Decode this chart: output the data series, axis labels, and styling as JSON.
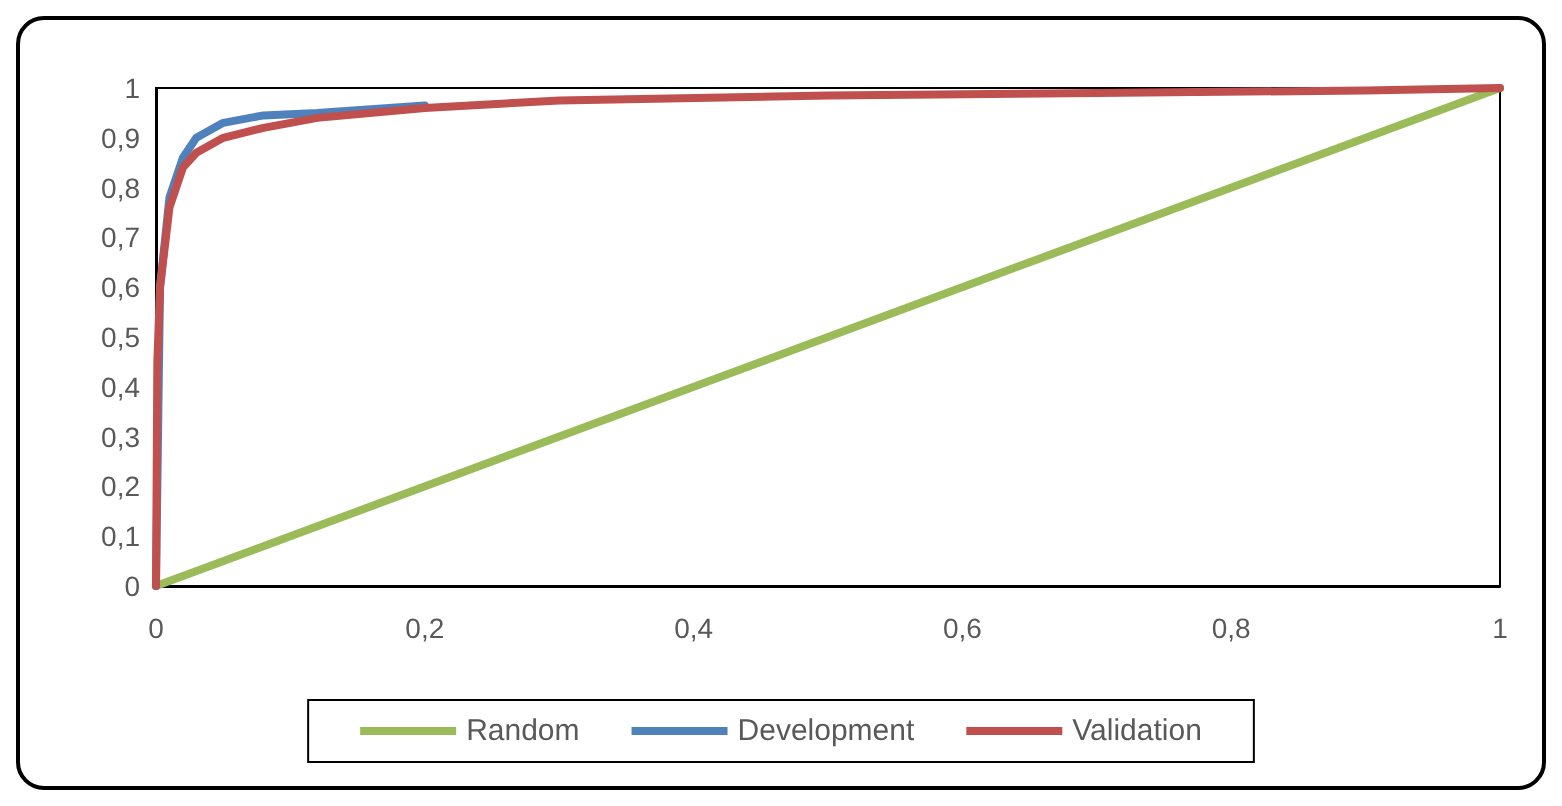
{
  "chart_data": {
    "type": "line",
    "xlim": [
      0,
      1
    ],
    "ylim": [
      0,
      1
    ],
    "xticks": [
      0,
      {
        "value": 0.2,
        "label": "0,2"
      },
      {
        "value": 0.4,
        "label": "0,4"
      },
      {
        "value": 0.6,
        "label": "0,6"
      },
      {
        "value": 0.8,
        "label": "0,8"
      },
      1
    ],
    "yticks": [
      0,
      {
        "value": 0.1,
        "label": "0,1"
      },
      {
        "value": 0.2,
        "label": "0,2"
      },
      {
        "value": 0.3,
        "label": "0,3"
      },
      {
        "value": 0.4,
        "label": "0,4"
      },
      {
        "value": 0.5,
        "label": "0,5"
      },
      {
        "value": 0.6,
        "label": "0,6"
      },
      {
        "value": 0.7,
        "label": "0,7"
      },
      {
        "value": 0.8,
        "label": "0,8"
      },
      {
        "value": 0.9,
        "label": "0,9"
      },
      1
    ],
    "grid": false,
    "legend": "bottom",
    "marker": "none",
    "line_style": "solid",
    "series": [
      {
        "name": "Random",
        "color": "#9bbb59",
        "x": [
          0,
          1
        ],
        "values": [
          0,
          1
        ]
      },
      {
        "name": "Development",
        "color": "#4f81bd",
        "x": [
          0,
          0.003,
          0.01,
          0.02,
          0.03,
          0.05,
          0.08,
          0.12,
          0.2
        ],
        "values": [
          0,
          0.6,
          0.78,
          0.86,
          0.9,
          0.93,
          0.945,
          0.95,
          0.965
        ]
      },
      {
        "name": "Validation",
        "color": "#c0504d",
        "x": [
          0,
          0.001,
          0.003,
          0.01,
          0.02,
          0.03,
          0.05,
          0.08,
          0.12,
          0.2,
          0.3,
          0.5,
          0.7,
          0.9,
          1
        ],
        "values": [
          0,
          0.45,
          0.6,
          0.76,
          0.84,
          0.87,
          0.9,
          0.92,
          0.94,
          0.96,
          0.975,
          0.985,
          0.99,
          0.995,
          1
        ]
      }
    ]
  }
}
